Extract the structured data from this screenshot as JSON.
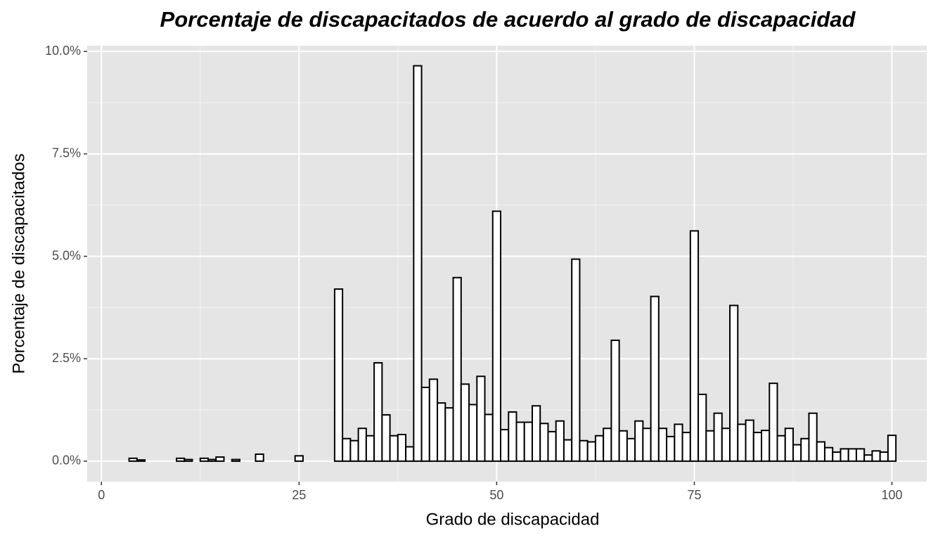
{
  "chart_data": {
    "type": "histogram",
    "title": "Porcentaje de discapacitados de acuerdo al grado de discapacidad",
    "x_label": "Grado de discapacidad",
    "y_label": "Porcentaje de discapacitados",
    "bins": [
      3.5,
      4.5,
      5.5,
      6.5,
      7.5,
      8.5,
      9.5,
      10.5,
      11.5,
      12.5,
      13.5,
      14.5,
      15.5,
      16.5,
      17.5,
      18.5,
      19.5,
      20.5,
      21.5,
      22.5,
      23.5,
      24.5,
      25.5,
      26.5,
      27.5,
      28.5,
      29.5,
      30.5,
      31.5,
      32.5,
      33.5,
      34.5,
      35.5,
      36.5,
      37.5,
      38.5,
      39.5,
      40.5,
      41.5,
      42.5,
      43.5,
      44.5,
      45.5,
      46.5,
      47.5,
      48.5,
      49.5,
      50.5,
      51.5,
      52.5,
      53.5,
      54.5,
      55.5,
      56.5,
      57.5,
      58.5,
      59.5,
      60.5,
      61.5,
      62.5,
      63.5,
      64.5,
      65.5,
      66.5,
      67.5,
      68.5,
      69.5,
      70.5,
      71.5,
      72.5,
      73.5,
      74.5,
      75.5,
      76.5,
      77.5,
      78.5,
      79.5,
      80.5,
      81.5,
      82.5,
      83.5,
      84.5,
      85.5,
      86.5,
      87.5,
      88.5,
      89.5,
      90.5,
      91.5,
      92.5,
      93.5,
      94.5,
      95.5,
      96.5,
      97.5,
      98.5,
      99.5,
      100.5
    ],
    "values": [
      0.07,
      0.03,
      0,
      0,
      0,
      0,
      0.07,
      0.04,
      0,
      0.07,
      0.04,
      0.1,
      0,
      0.04,
      0,
      0,
      0.17,
      0,
      0,
      0,
      0,
      0.13,
      0,
      0,
      0,
      0,
      4.2,
      0.55,
      0.5,
      0.8,
      0.62,
      2.4,
      1.13,
      0.62,
      0.65,
      0.35,
      9.65,
      1.8,
      2.0,
      1.42,
      1.3,
      4.48,
      1.88,
      1.38,
      2.07,
      1.14,
      6.1,
      0.77,
      1.2,
      0.95,
      0.95,
      1.35,
      0.92,
      0.72,
      0.98,
      0.52,
      4.93,
      0.5,
      0.47,
      0.62,
      0.8,
      2.95,
      0.74,
      0.55,
      0.98,
      0.8,
      4.02,
      0.8,
      0.6,
      0.9,
      0.7,
      5.62,
      1.63,
      0.74,
      1.17,
      0.8,
      3.8,
      0.9,
      1.0,
      0.7,
      0.75,
      1.9,
      0.62,
      0.8,
      0.4,
      0.55,
      1.17,
      0.47,
      0.33,
      0.22,
      0.3,
      0.3,
      0.3,
      0.15,
      0.25,
      0.22,
      0.63
    ],
    "fill": "#ffffff",
    "edge_color": "#000000",
    "xlim": [
      -1.8,
      104.4
    ],
    "xticks": [
      0,
      25,
      50,
      75,
      100
    ],
    "xminor": [
      12.5,
      37.5,
      62.5,
      87.5
    ],
    "ylim": [
      -0.5,
      10.14
    ],
    "yticks": [
      {
        "value": 0,
        "label": "0.0%"
      },
      {
        "value": 2.5,
        "label": "2.5%"
      },
      {
        "value": 5,
        "label": "5.0%"
      },
      {
        "value": 7.5,
        "label": "7.5%"
      },
      {
        "value": 10,
        "label": "10.0%"
      }
    ],
    "yminor": [
      1.25,
      3.75,
      6.25,
      8.75
    ],
    "grid": true
  }
}
